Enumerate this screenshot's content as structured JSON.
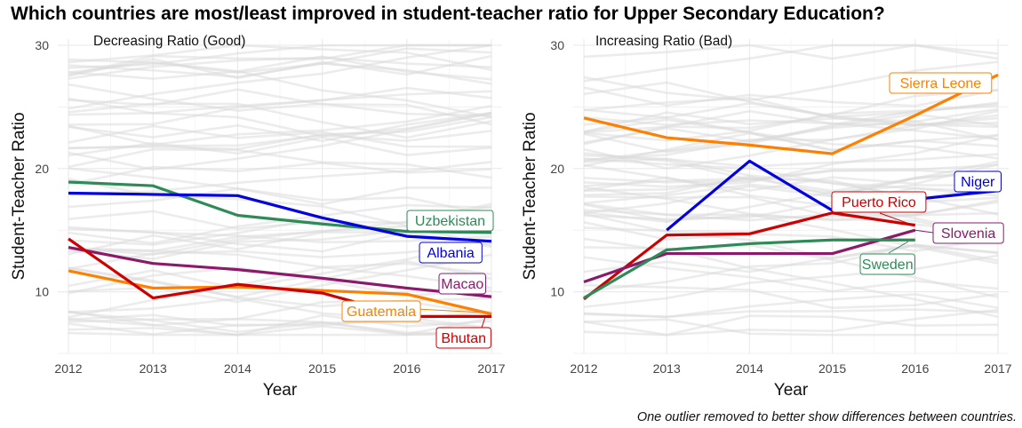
{
  "title": "Which countries are most/least improved in student-teacher ratio for Upper Secondary Education?",
  "caption": "One outlier removed to better show differences between countries.",
  "chart_data": [
    {
      "type": "line",
      "subtitle": "Decreasing Ratio (Good)",
      "xlabel": "Year",
      "ylabel": "Student-Teacher Ratio",
      "x": [
        2012,
        2013,
        2014,
        2015,
        2016,
        2017
      ],
      "ylim": [
        5,
        30.5
      ],
      "yticks": [
        10,
        20,
        30
      ],
      "grid": true,
      "highlighted": [
        {
          "name": "Uzbekistan",
          "color": "#2e8b57",
          "values": [
            18.9,
            18.6,
            16.2,
            15.5,
            14.9,
            14.8
          ]
        },
        {
          "name": "Albania",
          "color": "#0000e0",
          "values": [
            18.0,
            17.9,
            17.8,
            16.0,
            14.5,
            14.1
          ]
        },
        {
          "name": "Macao",
          "color": "#8b1a6b",
          "values": [
            13.6,
            12.3,
            11.8,
            11.1,
            10.3,
            9.6
          ]
        },
        {
          "name": "Guatemala",
          "color": "#ff7f00",
          "values": [
            11.7,
            10.3,
            10.4,
            10.1,
            9.8,
            8.2
          ]
        },
        {
          "name": "Bhutan",
          "color": "#cc0000",
          "values": [
            14.3,
            9.5,
            10.6,
            9.9,
            8.0,
            8.0
          ]
        }
      ]
    },
    {
      "type": "line",
      "subtitle": "Increasing Ratio (Bad)",
      "xlabel": "Year",
      "ylabel": "Student-Teacher Ratio",
      "x": [
        2012,
        2013,
        2014,
        2015,
        2016,
        2017
      ],
      "ylim": [
        5,
        30.5
      ],
      "yticks": [
        10,
        20,
        30
      ],
      "grid": true,
      "highlighted": [
        {
          "name": "Sierra Leone",
          "color": "#ff7f00",
          "values": [
            24.1,
            22.5,
            21.9,
            21.2,
            24.3,
            27.6
          ]
        },
        {
          "name": "Niger",
          "color": "#0000e0",
          "values": [
            null,
            15.0,
            20.6,
            16.6,
            17.5,
            18.2
          ]
        },
        {
          "name": "Puerto Rico",
          "color": "#cc0000",
          "values": [
            9.4,
            14.6,
            14.7,
            16.4,
            15.4,
            null
          ]
        },
        {
          "name": "Slovenia",
          "color": "#8b1a6b",
          "values": [
            10.8,
            13.1,
            13.1,
            13.1,
            15.0,
            null
          ]
        },
        {
          "name": "Sweden",
          "color": "#2e8b57",
          "values": [
            9.5,
            13.4,
            13.9,
            14.2,
            14.2,
            null
          ]
        }
      ]
    }
  ]
}
